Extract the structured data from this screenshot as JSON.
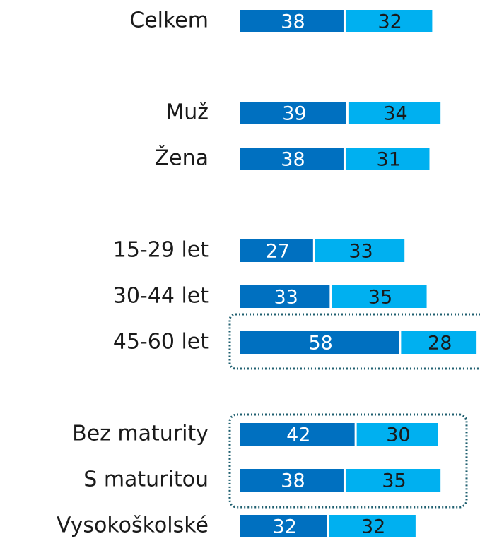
{
  "chart_data": {
    "type": "stacked-bar-horizontal",
    "categories": [
      "Celkem",
      null,
      "Muž",
      "Žena",
      null,
      "15-29 let",
      "30-44 let",
      "45-60 let",
      null,
      "Bez maturity",
      "S maturitou",
      "Vysokoškolské"
    ],
    "series": [
      {
        "color": "#0070c0",
        "label_color": "#ffffff",
        "values": [
          38,
          null,
          39,
          38,
          null,
          27,
          33,
          58,
          null,
          42,
          38,
          32
        ]
      },
      {
        "color": "#00b0f0",
        "label_color": "#1a1a1a",
        "values": [
          32,
          null,
          34,
          31,
          null,
          33,
          35,
          28,
          null,
          30,
          35,
          32
        ]
      }
    ]
  }
}
